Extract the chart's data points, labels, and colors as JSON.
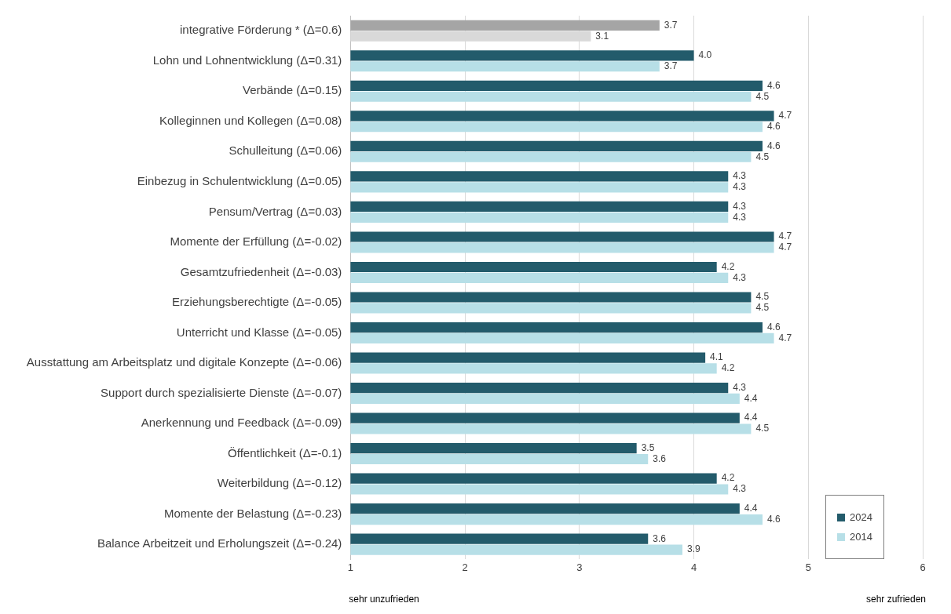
{
  "chart_data": {
    "type": "bar",
    "orientation": "horizontal",
    "categories": [
      "integrative Förderung * (Δ=0.6)",
      "Lohn und Lohnentwicklung (Δ=0.31)",
      "Verbände (Δ=0.15)",
      "Kolleginnen und Kollegen (Δ=0.08)",
      "Schulleitung (Δ=0.06)",
      "Einbezug in Schulentwicklung (Δ=0.05)",
      "Pensum/Vertrag (Δ=0.03)",
      "Momente der Erfüllung (Δ=-0.02)",
      "Gesamtzufriedenheit (Δ=-0.03)",
      "Erziehungsberechtigte (Δ=-0.05)",
      "Unterricht und Klasse (Δ=-0.05)",
      "Ausstattung am Arbeitsplatz und digitale Konzepte (Δ=-0.06)",
      "Support durch spezialisierte Dienste (Δ=-0.07)",
      "Anerkennung und Feedback (Δ=-0.09)",
      "Öffentlichkeit (Δ=-0.1)",
      "Weiterbildung (Δ=-0.12)",
      "Momente der Belastung (Δ=-0.23)",
      "Balance Arbeitzeit und Erholungszeit (Δ=-0.24)"
    ],
    "series": [
      {
        "name": "2024",
        "color": "#235b6b",
        "colors": [
          "#a5a5a5",
          "#235b6b",
          "#235b6b",
          "#235b6b",
          "#235b6b",
          "#235b6b",
          "#235b6b",
          "#235b6b",
          "#235b6b",
          "#235b6b",
          "#235b6b",
          "#235b6b",
          "#235b6b",
          "#235b6b",
          "#235b6b",
          "#235b6b",
          "#235b6b",
          "#235b6b"
        ],
        "values": [
          3.7,
          4.0,
          4.6,
          4.7,
          4.6,
          4.3,
          4.3,
          4.7,
          4.2,
          4.5,
          4.6,
          4.1,
          4.3,
          4.4,
          3.5,
          4.2,
          4.4,
          3.6
        ],
        "value_labels": [
          "3.7",
          "4.0",
          "4.6",
          "4.7",
          "4.6",
          "4.3",
          "4.3",
          "4.7",
          "4.2",
          "4.5",
          "4.6",
          "4.1",
          "4.3",
          "4.4",
          "3.5",
          "4.2",
          "4.4",
          "3.6"
        ]
      },
      {
        "name": "2014",
        "color": "#b7dfe7",
        "colors": [
          "#d9d9d9",
          "#b7dfe7",
          "#b7dfe7",
          "#b7dfe7",
          "#b7dfe7",
          "#b7dfe7",
          "#b7dfe7",
          "#b7dfe7",
          "#b7dfe7",
          "#b7dfe7",
          "#b7dfe7",
          "#b7dfe7",
          "#b7dfe7",
          "#b7dfe7",
          "#b7dfe7",
          "#b7dfe7",
          "#b7dfe7",
          "#b7dfe7"
        ],
        "values": [
          3.1,
          3.7,
          4.5,
          4.6,
          4.5,
          4.3,
          4.3,
          4.7,
          4.3,
          4.5,
          4.7,
          4.2,
          4.4,
          4.5,
          3.6,
          4.3,
          4.6,
          3.9
        ],
        "value_labels": [
          "3.1",
          "3.7",
          "4.5",
          "4.6",
          "4.5",
          "4.3",
          "4.3",
          "4.7",
          "4.3",
          "4.5",
          "4.7",
          "4.2",
          "4.4",
          "4.5",
          "3.6",
          "4.3",
          "4.6",
          "3.9"
        ]
      }
    ],
    "xlim": [
      1,
      6
    ],
    "xticks": [
      1,
      2,
      3,
      4,
      5,
      6
    ],
    "grid": "x",
    "legend": "bottom right",
    "annotations": [
      "sehr unzufrieden",
      "sehr zufrieden"
    ]
  }
}
